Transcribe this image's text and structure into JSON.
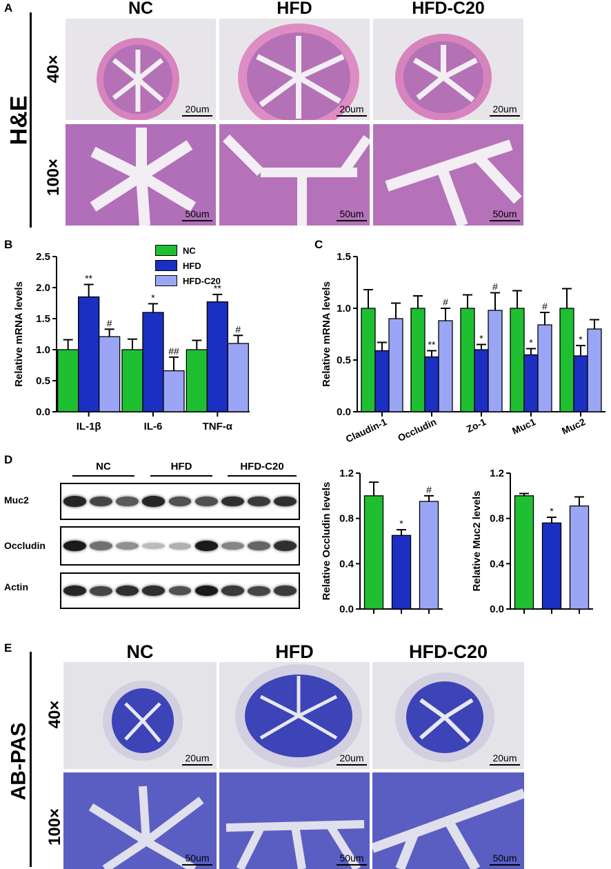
{
  "panels": {
    "A": "A",
    "B": "B",
    "C": "C",
    "D": "D",
    "E": "E"
  },
  "groups": [
    "NC",
    "HFD",
    "HFD-C20"
  ],
  "stains": {
    "he": "H&E",
    "abpas": "AB-PAS"
  },
  "magnifications": {
    "low": "40×",
    "high": "100×"
  },
  "scale": {
    "low": "20um",
    "high": "50um"
  },
  "colors": {
    "nc": "#1fbf32",
    "hfd": "#1b2fc2",
    "c20": "#9aa6f5",
    "he_bg": "#e9e6ea",
    "he_tissue": "#c879b8",
    "abpas_bg": "#e6e6ea",
    "abpas_tissue": "#3a3fb5"
  },
  "legend": [
    "NC",
    "HFD",
    "HFD-C20"
  ],
  "blot": {
    "groups": [
      "NC",
      "HFD",
      "HFD-C20"
    ],
    "rows": [
      "Muc2",
      "Occludin",
      "Actin"
    ],
    "intensities": {
      "Muc2": [
        0.9,
        0.75,
        0.65,
        0.9,
        0.7,
        0.7,
        0.85,
        0.8,
        0.85
      ],
      "Occludin": [
        0.95,
        0.55,
        0.4,
        0.2,
        0.25,
        0.95,
        0.45,
        0.6,
        0.85
      ],
      "Actin": [
        0.9,
        0.75,
        0.85,
        0.85,
        0.7,
        0.95,
        0.8,
        0.75,
        0.8
      ]
    }
  },
  "chart_data": [
    {
      "type": "bar",
      "id": "B",
      "categories": [
        "IL-1β",
        "IL-6",
        "TNF-α"
      ],
      "ylabel": "Relative mRNA levels",
      "ylim": [
        0,
        2.5
      ],
      "yticks": [
        "0.0",
        "0.5",
        "1.0",
        "1.5",
        "2.0",
        "2.5"
      ],
      "series": [
        {
          "name": "NC",
          "values": [
            1.0,
            1.0,
            1.0
          ],
          "errors": [
            0.16,
            0.17,
            0.15
          ],
          "marks": [
            "",
            "",
            ""
          ]
        },
        {
          "name": "HFD",
          "values": [
            1.85,
            1.6,
            1.77
          ],
          "errors": [
            0.2,
            0.14,
            0.12
          ],
          "marks": [
            "**",
            "*",
            "**"
          ]
        },
        {
          "name": "HFD-C20",
          "values": [
            1.21,
            0.66,
            1.1
          ],
          "errors": [
            0.12,
            0.22,
            0.13
          ],
          "marks": [
            "#",
            "##",
            "#"
          ]
        }
      ]
    },
    {
      "type": "bar",
      "id": "C",
      "categories": [
        "Claudin-1",
        "Occludin",
        "Zo-1",
        "Muc1",
        "Muc2"
      ],
      "ylabel": "Relative mRNA levels",
      "ylim": [
        0,
        1.5
      ],
      "yticks": [
        "0.0",
        "0.5",
        "1.0",
        "1.5"
      ],
      "series": [
        {
          "values": [
            1.0,
            1.0,
            1.0,
            1.0,
            1.0
          ],
          "errors": [
            0.18,
            0.12,
            0.13,
            0.17,
            0.19
          ],
          "marks": [
            "",
            "",
            "",
            "",
            ""
          ]
        },
        {
          "values": [
            0.59,
            0.53,
            0.6,
            0.55,
            0.54
          ],
          "errors": [
            0.08,
            0.06,
            0.05,
            0.06,
            0.1
          ],
          "marks": [
            "",
            "**",
            "*",
            "*",
            "*"
          ]
        },
        {
          "values": [
            0.9,
            0.88,
            0.98,
            0.84,
            0.8
          ],
          "errors": [
            0.15,
            0.12,
            0.17,
            0.12,
            0.09
          ],
          "marks": [
            "",
            "#",
            "#",
            "#",
            ""
          ]
        }
      ]
    },
    {
      "type": "bar",
      "id": "D1",
      "categories": [
        "NC",
        "HFD",
        "HFD-C20"
      ],
      "show_xticklabels": false,
      "ylabel": "Relative Occludin levels",
      "ylim": [
        0,
        1.2
      ],
      "yticks": [
        "0.0",
        "0.4",
        "0.8",
        "1.2"
      ],
      "values": [
        1.0,
        0.65,
        0.95
      ],
      "errors": [
        0.12,
        0.05,
        0.05
      ],
      "marks": [
        "",
        "*",
        "#"
      ]
    },
    {
      "type": "bar",
      "id": "D2",
      "categories": [
        "NC",
        "HFD",
        "HFD-C20"
      ],
      "show_xticklabels": false,
      "ylabel": "Relative Muc2 levels",
      "ylim": [
        0,
        1.2
      ],
      "yticks": [
        "0.0",
        "0.4",
        "0.8",
        "1.2"
      ],
      "values": [
        1.0,
        0.76,
        0.91
      ],
      "errors": [
        0.02,
        0.05,
        0.08
      ],
      "marks": [
        "",
        "*",
        ""
      ]
    }
  ]
}
